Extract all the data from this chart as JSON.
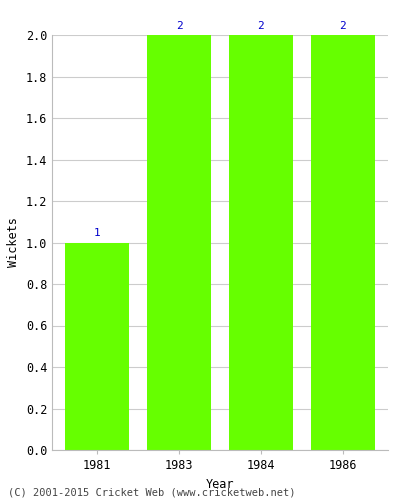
{
  "years": [
    "1981",
    "1983",
    "1984",
    "1986"
  ],
  "wickets": [
    1,
    2,
    2,
    2
  ],
  "bar_color": "#66FF00",
  "bar_edge_color": "#66FF00",
  "label_color": "#0000CC",
  "label_fontsize": 8,
  "ylabel": "Wickets",
  "xlabel": "Year",
  "ylim": [
    0.0,
    2.0
  ],
  "yticks": [
    0.0,
    0.2,
    0.4,
    0.6,
    0.8,
    1.0,
    1.2,
    1.4,
    1.6,
    1.8,
    2.0
  ],
  "grid_color": "#cccccc",
  "background_color": "#ffffff",
  "footer_text": "(C) 2001-2015 Cricket Web (www.cricketweb.net)",
  "footer_fontsize": 7.5,
  "bar_width": 0.78
}
